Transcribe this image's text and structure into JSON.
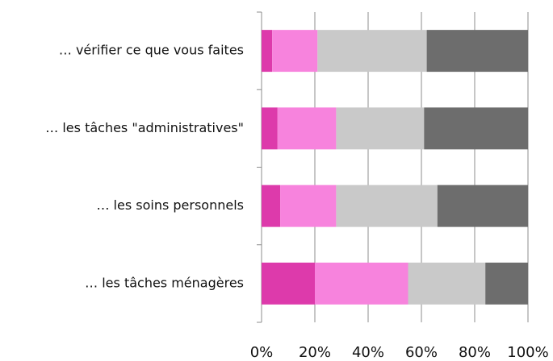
{
  "chart_data": {
    "type": "stacked_bar_horizontal",
    "categories": [
      "… vérifier ce que vous faites",
      "… les tâches \"administratives\"",
      "… les soins personnels",
      "… les tâches ménagères"
    ],
    "series": [
      {
        "color": "#dd3aab",
        "values": [
          4,
          6,
          7,
          20
        ]
      },
      {
        "color": "#f783dd",
        "values": [
          17,
          22,
          21,
          35
        ]
      },
      {
        "color": "#c9c9c9",
        "values": [
          41,
          33,
          38,
          29
        ]
      },
      {
        "color": "#6d6d6d",
        "values": [
          38,
          39,
          34,
          16
        ]
      }
    ],
    "xlim": [
      0,
      100
    ],
    "xticks": [
      {
        "value": 0,
        "label": "0%"
      },
      {
        "value": 20,
        "label": "20%"
      },
      {
        "value": 40,
        "label": "40%"
      },
      {
        "value": 60,
        "label": "60%"
      },
      {
        "value": 80,
        "label": "80%"
      },
      {
        "value": 100,
        "label": "100%"
      }
    ],
    "grid": true
  }
}
